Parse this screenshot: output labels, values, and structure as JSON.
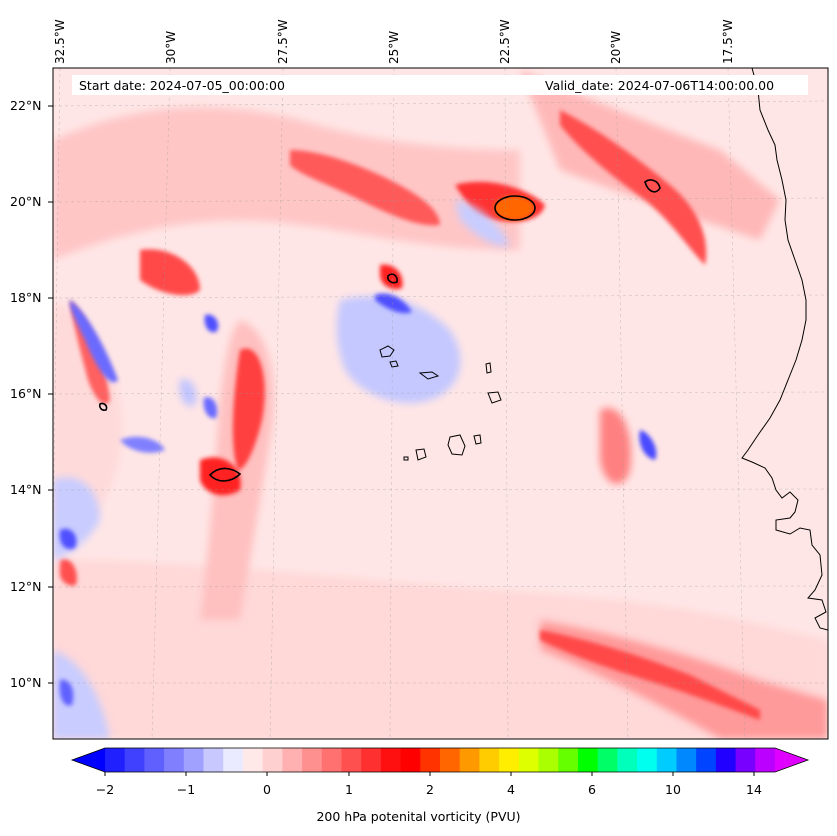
{
  "header": {
    "start_date": "Start date: 2024-07-05_00:00:00",
    "valid_date": "Valid_date: 2024-07-06T14:00:00.00"
  },
  "longitude_labels": [
    "32.5°W",
    "30°W",
    "27.5°W",
    "25°W",
    "22.5°W",
    "20°W",
    "17.5°W"
  ],
  "latitude_labels": [
    "22°N",
    "20°N",
    "18°N",
    "16°N",
    "14°N",
    "12°N",
    "10°N"
  ],
  "colorbar": {
    "tick_labels": [
      "−2",
      "−1",
      "0",
      "1",
      "2",
      "4",
      "6",
      "10",
      "14"
    ],
    "label": "200 hPa potenital vorticity (PVU)",
    "colors": [
      "#0000ff",
      "#2020ff",
      "#4040ff",
      "#6060ff",
      "#8080ff",
      "#a0a0ff",
      "#c8c8ff",
      "#ebebff",
      "#ffe8e8",
      "#ffd0d0",
      "#ffb0b0",
      "#ff9090",
      "#ff7070",
      "#ff5050",
      "#ff3030",
      "#ff1010",
      "#ff0000",
      "#ff3300",
      "#ff6600",
      "#ff9900",
      "#ffcc00",
      "#ffee00",
      "#ddff00",
      "#aaff00",
      "#66ff00",
      "#00ff00",
      "#00ff66",
      "#00ffbb",
      "#00ffee",
      "#00ccff",
      "#0088ff",
      "#0044ff",
      "#2200ff",
      "#7700ff",
      "#bb00ff",
      "#e000ff"
    ]
  },
  "colors": {
    "background_field": "#ffe6e6",
    "coastline": "#000000"
  }
}
